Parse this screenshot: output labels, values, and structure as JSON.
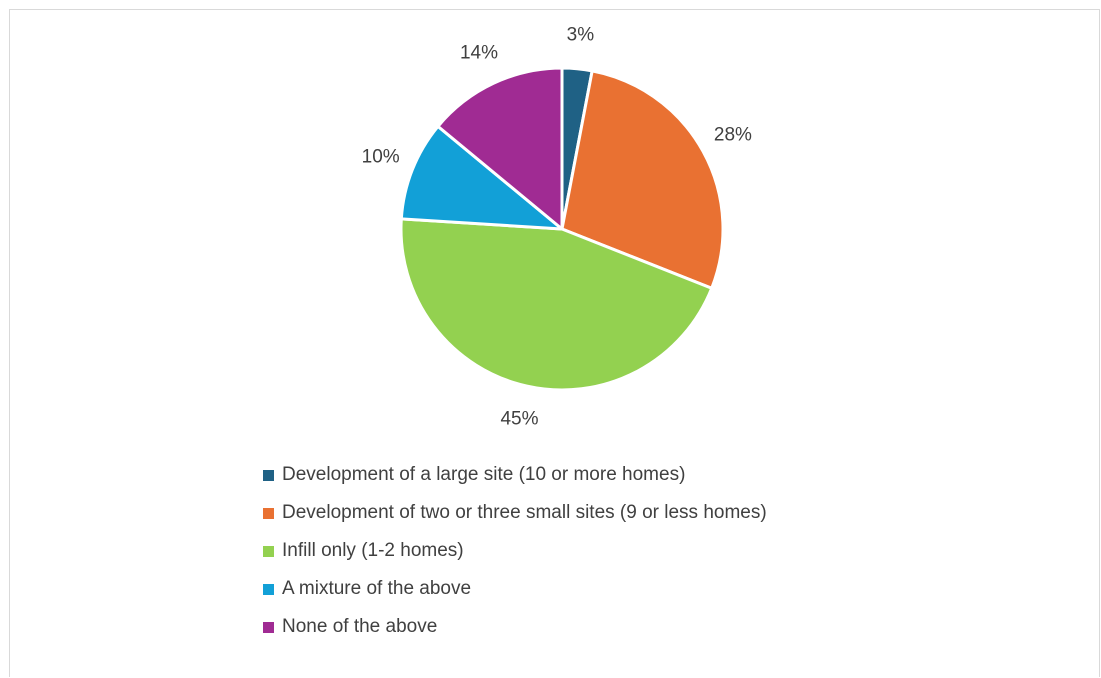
{
  "chart_data": {
    "type": "pie",
    "title": "",
    "start_angle_deg": 0,
    "direction": "clockwise",
    "legend_position": "bottom",
    "slices": [
      {
        "label": "Development of a large site (10 or more homes)",
        "value": 3,
        "value_label": "3%",
        "color": "#1f6185"
      },
      {
        "label": "Development of two or three small sites (9 or less homes)",
        "value": 28,
        "value_label": "28%",
        "color": "#e97132"
      },
      {
        "label": "Infill only (1-2 homes)",
        "value": 45,
        "value_label": "45%",
        "color": "#93d150"
      },
      {
        "label": "A mixture of the above",
        "value": 10,
        "value_label": "10%",
        "color": "#12a0d7"
      },
      {
        "label": "None of the above",
        "value": 14,
        "value_label": "14%",
        "color": "#a02b93"
      }
    ]
  }
}
